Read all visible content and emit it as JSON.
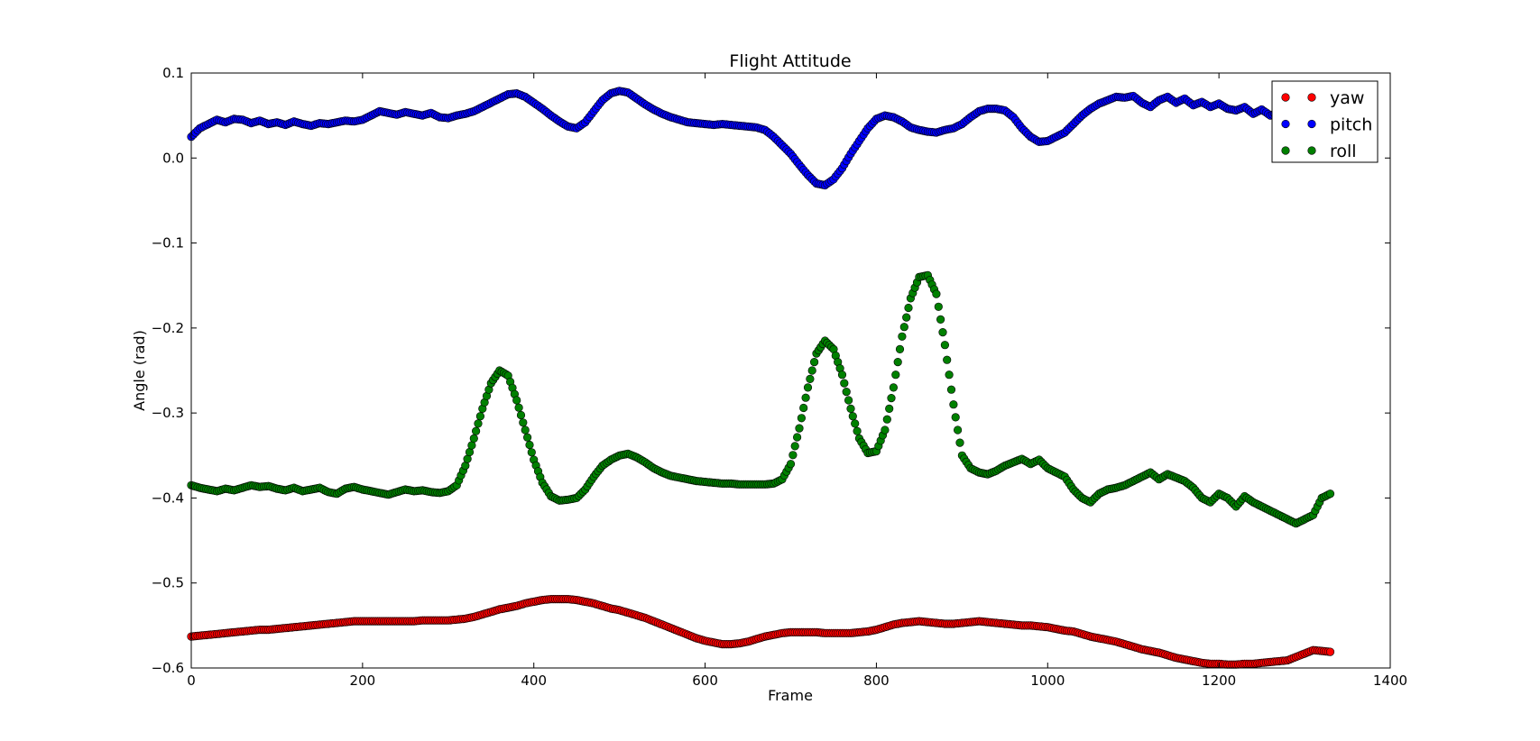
{
  "chart_data": {
    "type": "scatter",
    "title": "Flight Attitude",
    "xlabel": "Frame",
    "ylabel": "Angle (rad)",
    "xlim": [
      0,
      1400
    ],
    "ylim": [
      -0.6,
      0.1
    ],
    "xticks": [
      0,
      200,
      400,
      600,
      800,
      1000,
      1200,
      1400
    ],
    "xtick_labels": [
      "0",
      "200",
      "400",
      "600",
      "800",
      "1000",
      "1200",
      "1400"
    ],
    "yticks": [
      0.1,
      0.0,
      -0.1,
      -0.2,
      -0.3,
      -0.4,
      -0.5,
      -0.6
    ],
    "ytick_labels": [
      "0.1",
      "0.0",
      "−0.1",
      "−0.2",
      "−0.3",
      "−0.4",
      "−0.5",
      "−0.6"
    ],
    "grid": false,
    "legend_position": "top-right",
    "marker": "circle",
    "x_step": 10,
    "series": [
      {
        "name": "yaw",
        "color": "#ff0000",
        "x_start": 0,
        "values": [
          -0.563,
          -0.562,
          -0.561,
          -0.56,
          -0.559,
          -0.558,
          -0.557,
          -0.556,
          -0.555,
          -0.555,
          -0.554,
          -0.553,
          -0.552,
          -0.551,
          -0.55,
          -0.549,
          -0.548,
          -0.547,
          -0.546,
          -0.545,
          -0.545,
          -0.545,
          -0.545,
          -0.545,
          -0.545,
          -0.545,
          -0.545,
          -0.544,
          -0.544,
          -0.544,
          -0.544,
          -0.543,
          -0.542,
          -0.54,
          -0.537,
          -0.534,
          -0.531,
          -0.529,
          -0.527,
          -0.524,
          -0.522,
          -0.52,
          -0.519,
          -0.519,
          -0.519,
          -0.52,
          -0.522,
          -0.524,
          -0.527,
          -0.53,
          -0.532,
          -0.535,
          -0.538,
          -0.541,
          -0.545,
          -0.549,
          -0.553,
          -0.557,
          -0.561,
          -0.565,
          -0.568,
          -0.57,
          -0.572,
          -0.572,
          -0.571,
          -0.569,
          -0.566,
          -0.563,
          -0.561,
          -0.559,
          -0.558,
          -0.558,
          -0.558,
          -0.558,
          -0.559,
          -0.559,
          -0.559,
          -0.559,
          -0.558,
          -0.557,
          -0.555,
          -0.552,
          -0.549,
          -0.547,
          -0.546,
          -0.545,
          -0.546,
          -0.547,
          -0.548,
          -0.548,
          -0.547,
          -0.546,
          -0.545,
          -0.546,
          -0.547,
          -0.548,
          -0.549,
          -0.55,
          -0.55,
          -0.551,
          -0.552,
          -0.554,
          -0.556,
          -0.557,
          -0.56,
          -0.563,
          -0.565,
          -0.567,
          -0.569,
          -0.572,
          -0.575,
          -0.578,
          -0.58,
          -0.582,
          -0.585,
          -0.588,
          -0.59,
          -0.592,
          -0.594,
          -0.595,
          -0.595,
          -0.596,
          -0.596,
          -0.595,
          -0.595,
          -0.594,
          -0.593,
          -0.592,
          -0.591,
          -0.587,
          -0.583,
          -0.579,
          -0.58,
          -0.581
        ]
      },
      {
        "name": "pitch",
        "color": "#0000ff",
        "x_start": 0,
        "values": [
          0.025,
          0.035,
          0.04,
          0.045,
          0.042,
          0.046,
          0.045,
          0.041,
          0.044,
          0.04,
          0.042,
          0.039,
          0.043,
          0.04,
          0.038,
          0.041,
          0.04,
          0.042,
          0.044,
          0.043,
          0.045,
          0.05,
          0.055,
          0.053,
          0.051,
          0.054,
          0.052,
          0.05,
          0.053,
          0.048,
          0.047,
          0.05,
          0.052,
          0.055,
          0.06,
          0.065,
          0.07,
          0.075,
          0.076,
          0.072,
          0.065,
          0.058,
          0.05,
          0.043,
          0.037,
          0.035,
          0.042,
          0.055,
          0.068,
          0.076,
          0.079,
          0.077,
          0.07,
          0.063,
          0.057,
          0.052,
          0.048,
          0.045,
          0.042,
          0.041,
          0.04,
          0.039,
          0.04,
          0.039,
          0.038,
          0.037,
          0.036,
          0.033,
          0.025,
          0.015,
          0.005,
          -0.008,
          -0.02,
          -0.03,
          -0.032,
          -0.025,
          -0.012,
          0.005,
          0.02,
          0.035,
          0.046,
          0.05,
          0.048,
          0.043,
          0.036,
          0.033,
          0.031,
          0.03,
          0.033,
          0.035,
          0.04,
          0.048,
          0.055,
          0.058,
          0.058,
          0.056,
          0.048,
          0.035,
          0.025,
          0.019,
          0.02,
          0.025,
          0.03,
          0.04,
          0.05,
          0.058,
          0.064,
          0.068,
          0.072,
          0.071,
          0.073,
          0.065,
          0.06,
          0.068,
          0.072,
          0.065,
          0.07,
          0.062,
          0.066,
          0.06,
          0.064,
          0.058,
          0.056,
          0.06,
          0.052,
          0.057,
          0.05,
          0.054,
          0.048,
          0.045,
          0.042,
          0.038,
          0.035,
          0.03,
          0.028
        ]
      },
      {
        "name": "roll",
        "color": "#008000",
        "x_start": 0,
        "values": [
          -0.385,
          -0.388,
          -0.39,
          -0.392,
          -0.389,
          -0.391,
          -0.388,
          -0.385,
          -0.387,
          -0.386,
          -0.389,
          -0.391,
          -0.388,
          -0.392,
          -0.39,
          -0.388,
          -0.393,
          -0.395,
          -0.389,
          -0.387,
          -0.39,
          -0.392,
          -0.394,
          -0.396,
          -0.393,
          -0.39,
          -0.392,
          -0.391,
          -0.393,
          -0.394,
          -0.392,
          -0.385,
          -0.362,
          -0.33,
          -0.295,
          -0.265,
          -0.25,
          -0.256,
          -0.285,
          -0.32,
          -0.355,
          -0.382,
          -0.398,
          -0.403,
          -0.402,
          -0.4,
          -0.39,
          -0.375,
          -0.362,
          -0.355,
          -0.35,
          -0.348,
          -0.352,
          -0.358,
          -0.365,
          -0.37,
          -0.374,
          -0.376,
          -0.378,
          -0.38,
          -0.381,
          -0.382,
          -0.383,
          -0.383,
          -0.384,
          -0.384,
          -0.384,
          -0.384,
          -0.383,
          -0.378,
          -0.36,
          -0.318,
          -0.27,
          -0.23,
          -0.215,
          -0.225,
          -0.255,
          -0.295,
          -0.33,
          -0.347,
          -0.345,
          -0.32,
          -0.27,
          -0.21,
          -0.165,
          -0.14,
          -0.138,
          -0.16,
          -0.22,
          -0.29,
          -0.35,
          -0.365,
          -0.37,
          -0.372,
          -0.368,
          -0.362,
          -0.358,
          -0.354,
          -0.36,
          -0.355,
          -0.365,
          -0.37,
          -0.375,
          -0.39,
          -0.4,
          -0.405,
          -0.395,
          -0.39,
          -0.388,
          -0.385,
          -0.38,
          -0.375,
          -0.37,
          -0.378,
          -0.372,
          -0.376,
          -0.38,
          -0.388,
          -0.4,
          -0.405,
          -0.395,
          -0.4,
          -0.41,
          -0.398,
          -0.405,
          -0.41,
          -0.415,
          -0.42,
          -0.425,
          -0.43,
          -0.425,
          -0.42,
          -0.4,
          -0.395
        ]
      }
    ]
  }
}
